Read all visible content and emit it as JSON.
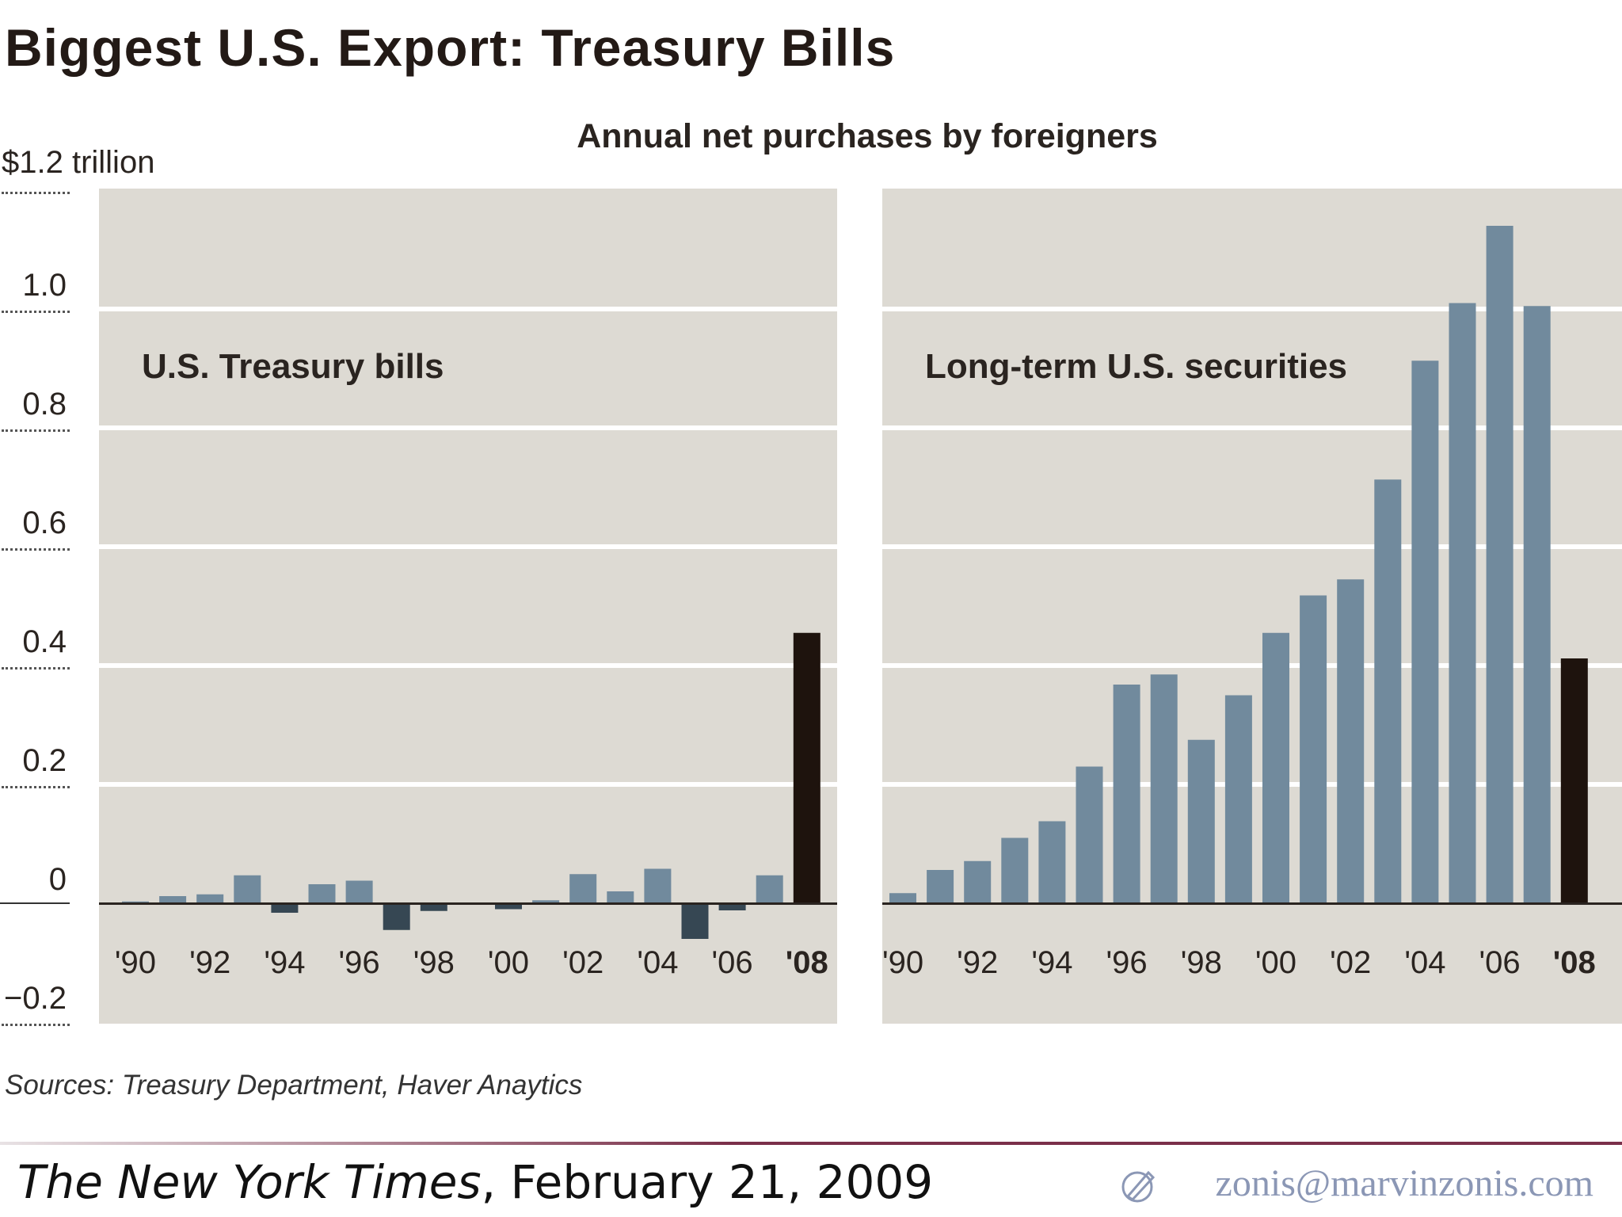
{
  "chart_data": {
    "type": "bar",
    "title": "Biggest U.S. Export: Treasury Bills",
    "subtitle": "Annual net purchases by foreigners",
    "ylabel": "$1.2 trillion",
    "ylim": [
      -0.2,
      1.2
    ],
    "yticks": [
      "$1.2 trillion",
      "1.0",
      "0.8",
      "0.6",
      "0.4",
      "0.2",
      "0",
      "−0.2"
    ],
    "ytick_values": [
      1.2,
      1.0,
      0.8,
      0.6,
      0.4,
      0.2,
      0,
      -0.2
    ],
    "categories": [
      "1990",
      "1991",
      "1992",
      "1993",
      "1994",
      "1995",
      "1996",
      "1997",
      "1998",
      "1999",
      "2000",
      "2001",
      "2002",
      "2003",
      "2004",
      "2005",
      "2006",
      "2007",
      "2008"
    ],
    "xtick_labels": [
      "'90",
      "'92",
      "'94",
      "'96",
      "'98",
      "'00",
      "'02",
      "'04",
      "'06",
      "'08"
    ],
    "panels": [
      {
        "name": "U.S. Treasury bills",
        "values": [
          0.003,
          0.012,
          0.015,
          0.047,
          -0.016,
          0.032,
          0.038,
          -0.045,
          -0.013,
          0.0,
          -0.01,
          0.005,
          0.049,
          0.02,
          0.058,
          -0.06,
          -0.012,
          0.047,
          0.455
        ]
      },
      {
        "name": "Long-term U.S. securities",
        "values": [
          0.017,
          0.056,
          0.071,
          0.11,
          0.138,
          0.23,
          0.368,
          0.385,
          0.275,
          0.35,
          0.455,
          0.518,
          0.545,
          0.713,
          0.913,
          1.01,
          1.14,
          1.005,
          0.412
        ]
      }
    ],
    "colors": {
      "positive": "#718a9d",
      "negative": "#364753",
      "highlight": "#1e130d",
      "panel_bg": "#dddad3",
      "grid": "#ffffff"
    }
  },
  "sources": "Sources: Treasury Department, Haver Anaytics",
  "credit": {
    "publication": "The New York Times",
    "date": ", February 21, 2009"
  },
  "email": "zonis@marvinzonis.com"
}
